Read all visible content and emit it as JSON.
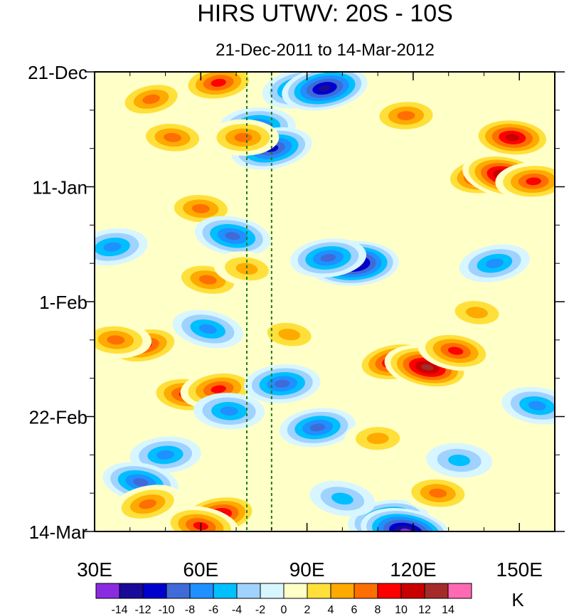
{
  "chart_data": {
    "type": "heatmap",
    "title": "HIRS UTWV: 20S - 10S",
    "subtitle": "21-Dec-2011 to 14-Mar-2012",
    "x_axis": {
      "range": [
        30,
        160
      ],
      "ticks": [
        {
          "value": 30,
          "label": "30E"
        },
        {
          "value": 60,
          "label": "60E"
        },
        {
          "value": 90,
          "label": "90E"
        },
        {
          "value": 120,
          "label": "120E"
        },
        {
          "value": 150,
          "label": "150E"
        }
      ],
      "minor_step": 10
    },
    "y_axis": {
      "range_days": [
        0,
        84
      ],
      "inverted": true,
      "ticks": [
        {
          "value": 0,
          "label": "21-Dec"
        },
        {
          "value": 21,
          "label": "11-Jan"
        },
        {
          "value": 42,
          "label": "1-Feb"
        },
        {
          "value": 63,
          "label": "22-Feb"
        },
        {
          "value": 84,
          "label": "14-Mar"
        }
      ],
      "minor_step": 7
    },
    "reference_lines_lon": [
      73,
      80
    ],
    "colorbar": {
      "unit": "K",
      "levels": [
        "-14",
        "-12",
        "-10",
        "-8",
        "-6",
        "-4",
        "-2",
        "0",
        "2",
        "4",
        "6",
        "8",
        "10",
        "12",
        "14"
      ],
      "colors": [
        "#8a2be2",
        "#1a0a99",
        "#0000cd",
        "#3f6ad8",
        "#1e90ff",
        "#00bfff",
        "#a0d2ff",
        "#d8f6ff",
        "#ffffc8",
        "#ffe03a",
        "#ffaa00",
        "#ff6e00",
        "#ff0000",
        "#c80000",
        "#a52a2a",
        "#ff69b4"
      ]
    },
    "anomaly_features": [
      {
        "lon": 65,
        "day": 2,
        "value": 10
      },
      {
        "lon": 46,
        "day": 5,
        "value": 8
      },
      {
        "lon": 88,
        "day": 3,
        "value": -10
      },
      {
        "lon": 95,
        "day": 3,
        "value": -14
      },
      {
        "lon": 76,
        "day": 10,
        "value": -10
      },
      {
        "lon": 80,
        "day": 14,
        "value": -12
      },
      {
        "lon": 118,
        "day": 8,
        "value": 8
      },
      {
        "lon": 148,
        "day": 12,
        "value": 11
      },
      {
        "lon": 140,
        "day": 19,
        "value": 11
      },
      {
        "lon": 146,
        "day": 19,
        "value": 14
      },
      {
        "lon": 154,
        "day": 20,
        "value": 10
      },
      {
        "lon": 52,
        "day": 12,
        "value": 8
      },
      {
        "lon": 72,
        "day": 12,
        "value": 7
      },
      {
        "lon": 60,
        "day": 25,
        "value": 8
      },
      {
        "lon": 69,
        "day": 30,
        "value": -10
      },
      {
        "lon": 35,
        "day": 32,
        "value": -8
      },
      {
        "lon": 103,
        "day": 35,
        "value": -15
      },
      {
        "lon": 96,
        "day": 34,
        "value": -10
      },
      {
        "lon": 62,
        "day": 38,
        "value": 7
      },
      {
        "lon": 73,
        "day": 36,
        "value": 6
      },
      {
        "lon": 143,
        "day": 35,
        "value": -8
      },
      {
        "lon": 138,
        "day": 44,
        "value": 6
      },
      {
        "lon": 44,
        "day": 50,
        "value": 10
      },
      {
        "lon": 36,
        "day": 49,
        "value": 8
      },
      {
        "lon": 62,
        "day": 47,
        "value": -8
      },
      {
        "lon": 85,
        "day": 48,
        "value": 5
      },
      {
        "lon": 115,
        "day": 53,
        "value": 11
      },
      {
        "lon": 124,
        "day": 54,
        "value": 14
      },
      {
        "lon": 132,
        "day": 51,
        "value": 10
      },
      {
        "lon": 56,
        "day": 59,
        "value": 10
      },
      {
        "lon": 65,
        "day": 58,
        "value": 9
      },
      {
        "lon": 83,
        "day": 57,
        "value": -9
      },
      {
        "lon": 68,
        "day": 62,
        "value": -8
      },
      {
        "lon": 93,
        "day": 65,
        "value": -10
      },
      {
        "lon": 50,
        "day": 70,
        "value": -7
      },
      {
        "lon": 43,
        "day": 75,
        "value": -9
      },
      {
        "lon": 45,
        "day": 79,
        "value": 8
      },
      {
        "lon": 65,
        "day": 81,
        "value": 12
      },
      {
        "lon": 60,
        "day": 83,
        "value": 9
      },
      {
        "lon": 113,
        "day": 82,
        "value": -12
      },
      {
        "lon": 118,
        "day": 84,
        "value": -15
      },
      {
        "lon": 127,
        "day": 77,
        "value": 7
      },
      {
        "lon": 110,
        "day": 67,
        "value": 6
      },
      {
        "lon": 133,
        "day": 71,
        "value": -6
      },
      {
        "lon": 100,
        "day": 78,
        "value": -6
      },
      {
        "lon": 155,
        "day": 61,
        "value": -8
      }
    ]
  }
}
